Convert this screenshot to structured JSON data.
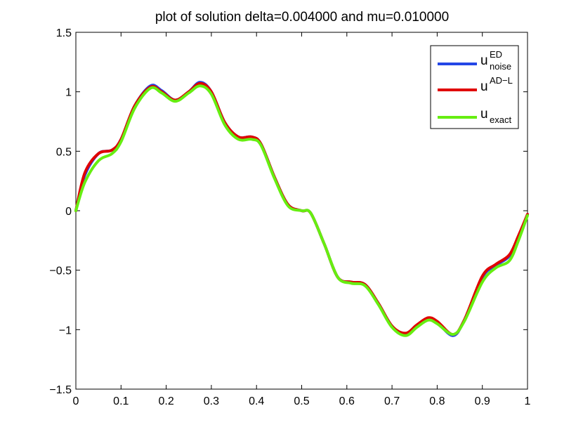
{
  "chart_data": {
    "type": "line",
    "title": "plot of solution delta=0.004000 and mu=0.010000",
    "xlabel": "",
    "ylabel": "",
    "xlim": [
      0,
      1
    ],
    "ylim": [
      -1.5,
      1.5
    ],
    "x_ticks": [
      0,
      0.1,
      0.2,
      0.3,
      0.4,
      0.5,
      0.6,
      0.7,
      0.8,
      0.9,
      1
    ],
    "x_tick_labels": [
      "0",
      "0.1",
      "0.2",
      "0.3",
      "0.4",
      "0.5",
      "0.6",
      "0.7",
      "0.8",
      "0.9",
      "1"
    ],
    "y_ticks": [
      -1.5,
      -1,
      -0.5,
      0,
      0.5,
      1,
      1.5
    ],
    "y_tick_labels": [
      "−1.5",
      "−1",
      "−0.5",
      "0",
      "0.5",
      "1",
      "1.5"
    ],
    "grid": false,
    "legend_position": "top-right",
    "series": [
      {
        "legend_base": "u",
        "legend_sup": "ED",
        "legend_sub": "noise",
        "color": "#2447e6",
        "x": [
          0,
          0.02,
          0.05,
          0.08,
          0.1,
          0.13,
          0.165,
          0.19,
          0.22,
          0.25,
          0.275,
          0.3,
          0.33,
          0.36,
          0.39,
          0.41,
          0.44,
          0.47,
          0.5,
          0.52,
          0.55,
          0.58,
          0.61,
          0.64,
          0.67,
          0.7,
          0.73,
          0.755,
          0.78,
          0.8,
          0.835,
          0.86,
          0.9,
          0.93,
          0.96,
          0.98,
          1
        ],
        "y": [
          0,
          0.3,
          0.48,
          0.51,
          0.6,
          0.88,
          1.05,
          1.01,
          0.93,
          1.0,
          1.08,
          1.0,
          0.74,
          0.62,
          0.62,
          0.56,
          0.28,
          0.05,
          0,
          -0.02,
          -0.28,
          -0.56,
          -0.6,
          -0.62,
          -0.78,
          -0.97,
          -1.04,
          -0.97,
          -0.91,
          -0.94,
          -1.05,
          -0.92,
          -0.56,
          -0.46,
          -0.38,
          -0.22,
          -0.03
        ]
      },
      {
        "legend_base": "u",
        "legend_sup": "AD−L",
        "legend_sub": "",
        "color": "#e00000",
        "x": [
          0,
          0.02,
          0.05,
          0.08,
          0.1,
          0.13,
          0.165,
          0.19,
          0.22,
          0.25,
          0.275,
          0.3,
          0.33,
          0.36,
          0.39,
          0.41,
          0.44,
          0.47,
          0.5,
          0.52,
          0.55,
          0.58,
          0.61,
          0.64,
          0.67,
          0.7,
          0.73,
          0.755,
          0.78,
          0.8,
          0.835,
          0.86,
          0.9,
          0.93,
          0.96,
          0.98,
          1
        ],
        "y": [
          0,
          0.32,
          0.48,
          0.51,
          0.6,
          0.88,
          1.04,
          1.0,
          0.93,
          1.0,
          1.07,
          1.0,
          0.74,
          0.62,
          0.62,
          0.56,
          0.28,
          0.05,
          0,
          -0.02,
          -0.28,
          -0.56,
          -0.6,
          -0.62,
          -0.78,
          -0.97,
          -1.03,
          -0.96,
          -0.9,
          -0.93,
          -1.04,
          -0.92,
          -0.55,
          -0.45,
          -0.37,
          -0.21,
          -0.03
        ]
      },
      {
        "legend_base": "u",
        "legend_sup": "",
        "legend_sub": "exact",
        "color": "#66ee11",
        "x": [
          0,
          0.02,
          0.05,
          0.08,
          0.1,
          0.13,
          0.165,
          0.19,
          0.22,
          0.25,
          0.275,
          0.3,
          0.33,
          0.36,
          0.39,
          0.41,
          0.44,
          0.47,
          0.5,
          0.52,
          0.55,
          0.58,
          0.61,
          0.64,
          0.67,
          0.7,
          0.73,
          0.755,
          0.78,
          0.8,
          0.835,
          0.86,
          0.9,
          0.93,
          0.96,
          0.98,
          1
        ],
        "y": [
          0,
          0.24,
          0.42,
          0.48,
          0.58,
          0.86,
          1.03,
          0.99,
          0.92,
          0.99,
          1.05,
          0.98,
          0.72,
          0.6,
          0.6,
          0.55,
          0.27,
          0.04,
          0,
          -0.02,
          -0.28,
          -0.56,
          -0.61,
          -0.63,
          -0.79,
          -0.98,
          -1.05,
          -0.98,
          -0.92,
          -0.95,
          -1.04,
          -0.93,
          -0.6,
          -0.48,
          -0.42,
          -0.25,
          -0.04
        ]
      }
    ]
  }
}
